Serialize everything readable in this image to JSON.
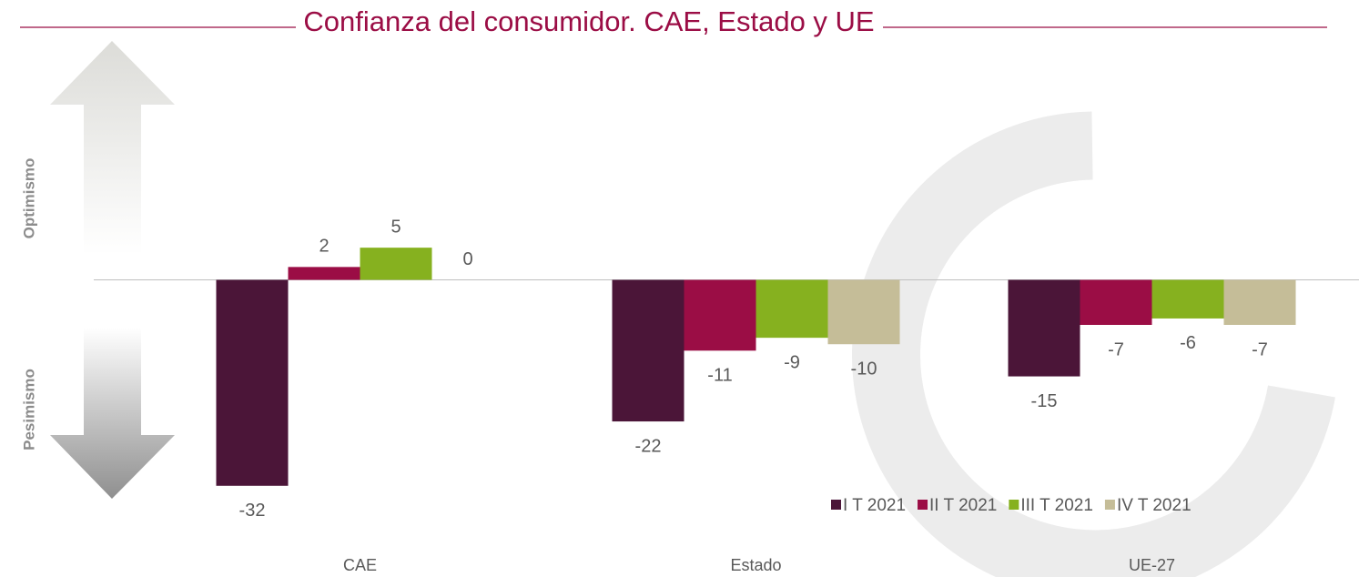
{
  "chart_data": {
    "type": "bar",
    "title": "Confianza del consumidor. CAE, Estado y UE",
    "annotations": [
      "Optimismo",
      "Pesimismo"
    ],
    "categories": [
      "CAE",
      "Estado",
      "UE-27"
    ],
    "series": [
      {
        "name": "I T 2021",
        "color": "#4b1538",
        "values": [
          -32,
          -22,
          -15
        ]
      },
      {
        "name": "II T 2021",
        "color": "#9b0d45",
        "values": [
          2,
          -11,
          -7
        ]
      },
      {
        "name": "III T 2021",
        "color": "#86b11f",
        "values": [
          5,
          -9,
          -6
        ]
      },
      {
        "name": "IV T 2021",
        "color": "#c5bd98",
        "values": [
          0,
          -10,
          -7
        ]
      }
    ],
    "ylim": [
      -35,
      35
    ],
    "legend": "lower right"
  }
}
